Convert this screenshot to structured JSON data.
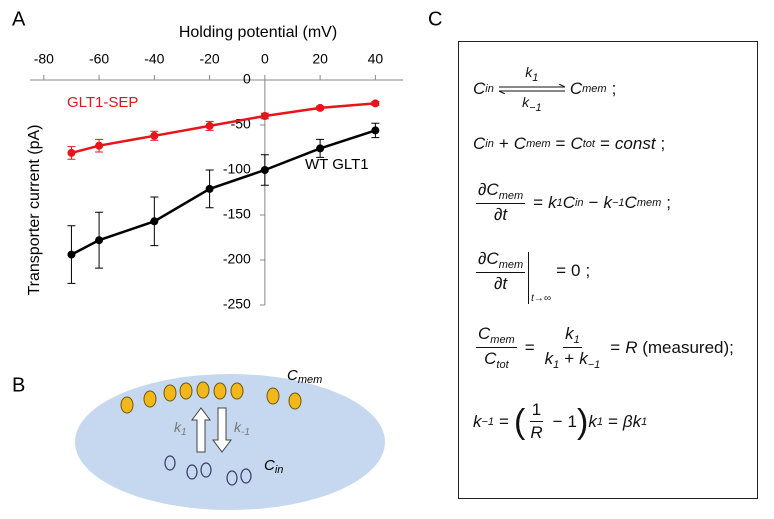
{
  "panel_labels": [
    "A",
    "B",
    "C"
  ],
  "chart_data": {
    "type": "line",
    "xlabel": "Holding potential (mV)",
    "ylabel": "Transporter current (pA)",
    "x": [
      -70,
      -60,
      -40,
      -20,
      0,
      20,
      40
    ],
    "xlim": [
      -85,
      50
    ],
    "xticks": [
      -80,
      -60,
      -40,
      -20,
      0,
      20,
      40
    ],
    "ylim": [
      -250,
      0
    ],
    "yticks": [
      0,
      -50,
      -100,
      -150,
      -200,
      -250
    ],
    "series": [
      {
        "name": "GLT1-SEP",
        "color": "#e8141b",
        "values": [
          -81,
          -73,
          -62,
          -51,
          -40,
          -31,
          -26
        ],
        "errors": [
          7,
          7,
          5,
          5,
          3,
          2,
          2
        ]
      },
      {
        "name": "WT GLT1",
        "color": "#000000",
        "values": [
          -194,
          -178,
          -157,
          -121,
          -100,
          -76,
          -56
        ],
        "errors": [
          32,
          31,
          27,
          21,
          17,
          10,
          8
        ]
      }
    ]
  },
  "diagram": {
    "c_mem": [
      "C",
      "mem"
    ],
    "k1": [
      "k",
      "1"
    ],
    "k_minus1": [
      "k",
      "-1"
    ],
    "c_in": [
      "C",
      "in"
    ]
  },
  "equations": [
    [
      "C",
      "in",
      "k",
      "1",
      "k",
      "−1",
      "C",
      "mem",
      ";"
    ],
    [
      "C",
      "in",
      "+",
      "C",
      "mem",
      "=",
      "C",
      "tot",
      "=",
      "const",
      ";"
    ],
    [
      "∂C",
      "mem",
      "∂t",
      "=",
      "k",
      "1",
      "C",
      "in",
      "−",
      "k",
      "−1",
      "C",
      "mem",
      ";"
    ],
    [
      "∂C",
      "mem",
      "∂t",
      "t→∞",
      "=",
      "0",
      ";"
    ],
    [
      "C",
      "mem",
      "C",
      "tot",
      "=",
      "k",
      "1",
      "k",
      "1",
      "+",
      "k",
      "−1",
      "=",
      "R",
      "(measured);"
    ],
    [
      "k",
      "−1",
      "=",
      "(",
      "1",
      "R",
      "−",
      "1",
      ")",
      "k",
      "1",
      "=",
      "β",
      "k",
      "1"
    ]
  ]
}
